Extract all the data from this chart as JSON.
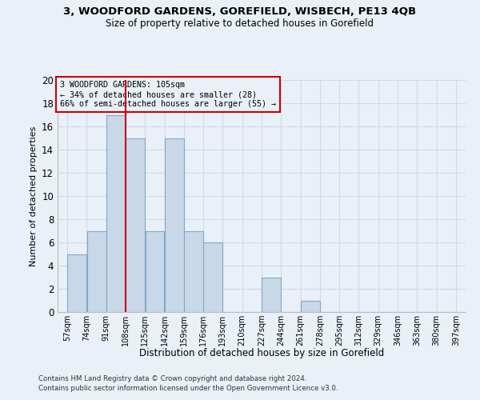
{
  "title": "3, WOODFORD GARDENS, GOREFIELD, WISBECH, PE13 4QB",
  "subtitle": "Size of property relative to detached houses in Gorefield",
  "xlabel": "Distribution of detached houses by size in Gorefield",
  "ylabel": "Number of detached properties",
  "bins": [
    "57sqm",
    "74sqm",
    "91sqm",
    "108sqm",
    "125sqm",
    "142sqm",
    "159sqm",
    "176sqm",
    "193sqm",
    "210sqm",
    "227sqm",
    "244sqm",
    "261sqm",
    "278sqm",
    "295sqm",
    "312sqm",
    "329sqm",
    "346sqm",
    "363sqm",
    "380sqm",
    "397sqm"
  ],
  "counts": [
    5,
    7,
    17,
    15,
    7,
    15,
    7,
    6,
    0,
    0,
    3,
    0,
    1,
    0,
    0,
    0,
    0,
    0,
    0,
    0
  ],
  "bar_color": "#c8d8e8",
  "bar_edge_color": "#7fa8c8",
  "grid_color": "#d0d8e8",
  "bin_edges_values": [
    57,
    74,
    91,
    108,
    125,
    142,
    159,
    176,
    193,
    210,
    227,
    244,
    261,
    278,
    295,
    312,
    329,
    346,
    363,
    380,
    397
  ],
  "annotation_box_text": "3 WOODFORD GARDENS: 105sqm\n← 34% of detached houses are smaller (28)\n66% of semi-detached houses are larger (55) →",
  "annotation_box_color": "#cc0000",
  "vline_color": "#cc0000",
  "footnote1": "Contains HM Land Registry data © Crown copyright and database right 2024.",
  "footnote2": "Contains public sector information licensed under the Open Government Licence v3.0.",
  "background_color": "#eaf0f8",
  "ylim": [
    0,
    20
  ],
  "yticks": [
    0,
    2,
    4,
    6,
    8,
    10,
    12,
    14,
    16,
    18,
    20
  ]
}
